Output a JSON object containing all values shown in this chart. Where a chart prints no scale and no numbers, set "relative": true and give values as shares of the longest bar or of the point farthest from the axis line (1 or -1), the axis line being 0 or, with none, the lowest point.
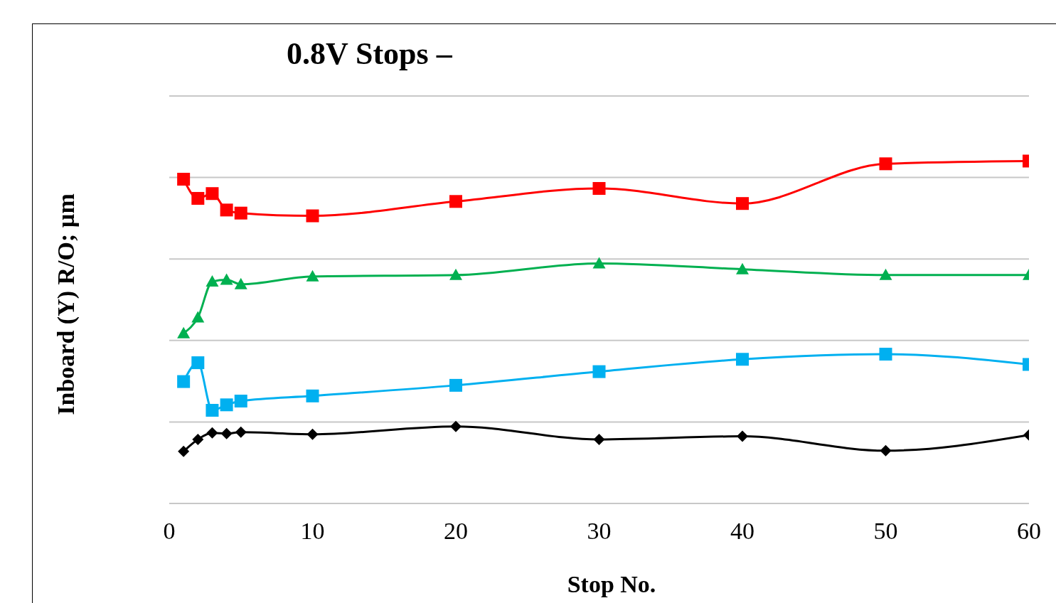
{
  "chart_data": {
    "type": "line",
    "title": "0.8V Stops –",
    "xlabel": "Stop No.",
    "ylabel": "Inboard (Y) R/O; µm",
    "relative": true,
    "x": [
      1,
      2,
      3,
      4,
      5,
      10,
      20,
      30,
      40,
      50,
      60
    ],
    "xlim": [
      0,
      60
    ],
    "xticks": [
      0,
      10,
      20,
      30,
      40,
      50,
      60
    ],
    "grid": "y",
    "series": [
      {
        "color": "#ff0000",
        "marker": "square",
        "values": [
          0.947,
          0.891,
          0.905,
          0.857,
          0.848,
          0.84,
          0.882,
          0.92,
          0.876,
          0.992,
          1
        ]
      },
      {
        "color": "#00b050",
        "marker": "triangle",
        "values": [
          0.497,
          0.543,
          0.648,
          0.653,
          0.64,
          0.663,
          0.667,
          0.701,
          0.684,
          0.667,
          0.667
        ]
      },
      {
        "color": "#00b0f0",
        "marker": "square",
        "values": [
          0.356,
          0.411,
          0.272,
          0.288,
          0.299,
          0.314,
          0.345,
          0.385,
          0.421,
          0.436,
          0.406
        ]
      },
      {
        "color": "#000000",
        "marker": "diamond",
        "values": [
          0.152,
          0.187,
          0.206,
          0.204,
          0.208,
          0.202,
          0.225,
          0.187,
          0.196,
          0.154,
          0.2
        ]
      }
    ]
  }
}
